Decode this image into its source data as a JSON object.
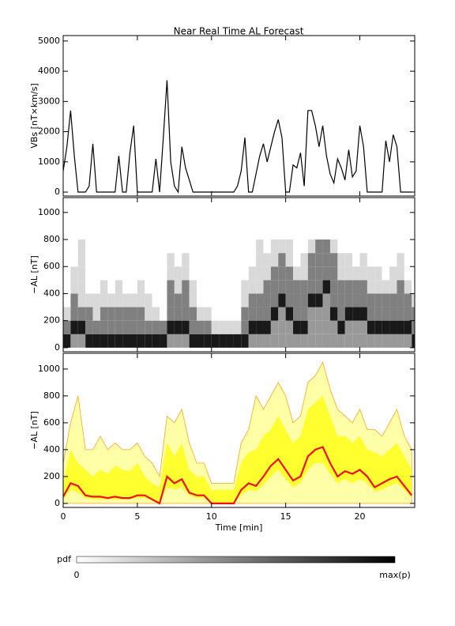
{
  "title": "Near Real Time AL Forecast",
  "colorbar": {
    "label": "pdf",
    "min_label": "0",
    "max_label": "max(p)"
  },
  "chart_data": [
    {
      "type": "line",
      "ylabel": "VBs [nT×km/s]",
      "xlim": [
        0,
        23.7
      ],
      "ylim": [
        -130,
        5180
      ],
      "yticks": [
        0,
        1000,
        2000,
        3000,
        4000,
        5000
      ],
      "series": [
        {
          "color": "#000000",
          "x": [
            0,
            0.25,
            0.5,
            0.75,
            1,
            1.25,
            1.5,
            1.75,
            2,
            2.25,
            2.5,
            2.75,
            3,
            3.25,
            3.5,
            3.75,
            4,
            4.25,
            4.5,
            4.75,
            5,
            5.25,
            5.5,
            5.75,
            6,
            6.25,
            6.5,
            6.75,
            7,
            7.25,
            7.5,
            7.75,
            8,
            8.25,
            8.5,
            8.75,
            9,
            9.25,
            9.5,
            9.75,
            10,
            10.25,
            10.5,
            10.75,
            11,
            11.25,
            11.5,
            11.75,
            12,
            12.25,
            12.5,
            12.75,
            13,
            13.25,
            13.5,
            13.75,
            14,
            14.25,
            14.5,
            14.75,
            15,
            15.25,
            15.5,
            15.75,
            16,
            16.25,
            16.5,
            16.75,
            17,
            17.25,
            17.5,
            17.75,
            18,
            18.25,
            18.5,
            18.75,
            19,
            19.25,
            19.5,
            19.75,
            20,
            20.25,
            20.5,
            20.75,
            21,
            21.25,
            21.5,
            21.75,
            22,
            22.25,
            22.5,
            22.75,
            23,
            23.25,
            23.5
          ],
          "values": [
            700,
            1500,
            2700,
            1200,
            0,
            0,
            0,
            200,
            1600,
            0,
            0,
            0,
            0,
            0,
            0,
            1200,
            0,
            0,
            1300,
            2200,
            0,
            0,
            0,
            0,
            0,
            1100,
            0,
            1800,
            3700,
            1000,
            200,
            0,
            1500,
            800,
            400,
            0,
            0,
            0,
            0,
            0,
            0,
            0,
            0,
            0,
            0,
            0,
            0,
            200,
            700,
            1800,
            0,
            0,
            600,
            1200,
            1600,
            1000,
            1500,
            2000,
            2400,
            1800,
            0,
            0,
            900,
            800,
            1300,
            200,
            2700,
            2700,
            2200,
            1500,
            2200,
            1200,
            600,
            300,
            1100,
            800,
            400,
            1400,
            500,
            700,
            2200,
            1500,
            0,
            0,
            0,
            0,
            0,
            1700,
            1000,
            1900,
            1500,
            0,
            0,
            0,
            0
          ]
        }
      ]
    },
    {
      "type": "heatmap",
      "ylabel": "−AL [nT]",
      "xlim": [
        0,
        23.7
      ],
      "ylim": [
        -30,
        1110
      ],
      "yticks": [
        0,
        200,
        400,
        600,
        800,
        1000
      ],
      "xbins": [
        0,
        0.5,
        1,
        1.5,
        2,
        2.5,
        3,
        3.5,
        4,
        4.5,
        5,
        5.5,
        6,
        6.5,
        7,
        7.5,
        8,
        8.5,
        9,
        9.5,
        10,
        10.5,
        11,
        11.5,
        12,
        12.5,
        13,
        13.5,
        14,
        14.5,
        15,
        15.5,
        16,
        16.5,
        17,
        17.5,
        18,
        18.5,
        19,
        19.5,
        20,
        20.5,
        21,
        21.5,
        22,
        22.5,
        23,
        23.5,
        24
      ],
      "ybins": [
        0,
        100,
        200,
        300,
        400,
        500,
        600,
        700,
        800
      ],
      "values": [
        [
          0.9,
          0.4,
          0.4,
          0.9,
          0.9,
          0.9,
          0.9,
          0.9,
          0.9,
          0.9,
          0.9,
          0.9,
          0.9,
          0.9,
          0.4,
          0.4,
          0.4,
          0.9,
          0.9,
          0.9,
          0.9,
          0.9,
          0.9,
          0.9,
          0.9,
          0.4,
          0.4,
          0.4,
          0.4,
          0.4,
          0.4,
          0.4,
          0.4,
          0.4,
          0.4,
          0.4,
          0.4,
          0.4,
          0.4,
          0.4,
          0.4,
          0.4,
          0.4,
          0.4,
          0.4,
          0.4,
          0.4,
          0.9
        ],
        [
          0.5,
          0.9,
          0.9,
          0.5,
          0.5,
          0.5,
          0.5,
          0.5,
          0.5,
          0.5,
          0.5,
          0.5,
          0.5,
          0.5,
          0.9,
          0.9,
          0.9,
          0.5,
          0.5,
          0.5,
          0.15,
          0.15,
          0.15,
          0.15,
          0.5,
          0.9,
          0.9,
          0.9,
          0.4,
          0.4,
          0.4,
          0.9,
          0.9,
          0.4,
          0.4,
          0.4,
          0.4,
          0.9,
          0.4,
          0.4,
          0.4,
          0.9,
          0.9,
          0.9,
          0.9,
          0.9,
          0.9,
          0.5
        ],
        [
          0.15,
          0.5,
          0.5,
          0.5,
          0.15,
          0.5,
          0.5,
          0.5,
          0.5,
          0.5,
          0.5,
          0.15,
          0.15,
          0,
          0.5,
          0.5,
          0.5,
          0.5,
          0.15,
          0.15,
          0,
          0,
          0,
          0,
          0.5,
          0.5,
          0.5,
          0.5,
          0.9,
          0.4,
          0.9,
          0.5,
          0.5,
          0.4,
          0.4,
          0.4,
          0.9,
          0.5,
          0.9,
          0.9,
          0.9,
          0.5,
          0.5,
          0.5,
          0.5,
          0.5,
          0.5,
          0.5
        ],
        [
          0,
          0.5,
          0.15,
          0.15,
          0.15,
          0.15,
          0.15,
          0.15,
          0.15,
          0.15,
          0.15,
          0.15,
          0,
          0,
          0.5,
          0.5,
          0.5,
          0.15,
          0,
          0,
          0,
          0,
          0,
          0,
          0.15,
          0.5,
          0.5,
          0.5,
          0.5,
          0.9,
          0.5,
          0.5,
          0.5,
          0.9,
          0.9,
          0.4,
          0.5,
          0.5,
          0.5,
          0.5,
          0.5,
          0.5,
          0.5,
          0.5,
          0.5,
          0.5,
          0.5,
          0.15
        ],
        [
          0,
          0.15,
          0.15,
          0,
          0,
          0.15,
          0,
          0.15,
          0,
          0,
          0.15,
          0,
          0,
          0,
          0.5,
          0.15,
          0.5,
          0.15,
          0,
          0,
          0,
          0,
          0,
          0,
          0.15,
          0.15,
          0.15,
          0.5,
          0.5,
          0.5,
          0.5,
          0.5,
          0.5,
          0.5,
          0.5,
          0.9,
          0.5,
          0.5,
          0.5,
          0.5,
          0.5,
          0.15,
          0.15,
          0.15,
          0.15,
          0.5,
          0.15,
          0
        ],
        [
          0,
          0.15,
          0.15,
          0,
          0,
          0,
          0,
          0,
          0,
          0,
          0,
          0,
          0,
          0,
          0.15,
          0.15,
          0.15,
          0,
          0,
          0,
          0,
          0,
          0,
          0,
          0,
          0.15,
          0.15,
          0.15,
          0.5,
          0.5,
          0.5,
          0.15,
          0.15,
          0.5,
          0.5,
          0.5,
          0.5,
          0.15,
          0.15,
          0.15,
          0.15,
          0.15,
          0.15,
          0,
          0.15,
          0.15,
          0,
          0
        ],
        [
          0,
          0,
          0.15,
          0,
          0,
          0,
          0,
          0,
          0,
          0,
          0,
          0,
          0,
          0,
          0.15,
          0,
          0.15,
          0,
          0,
          0,
          0,
          0,
          0,
          0,
          0,
          0,
          0.15,
          0.15,
          0.15,
          0.5,
          0.15,
          0,
          0.15,
          0.5,
          0.5,
          0.5,
          0.5,
          0.15,
          0.15,
          0,
          0.15,
          0,
          0,
          0,
          0,
          0.15,
          0,
          0
        ],
        [
          0,
          0,
          0.15,
          0,
          0,
          0,
          0,
          0,
          0,
          0,
          0,
          0,
          0,
          0,
          0,
          0,
          0,
          0,
          0,
          0,
          0,
          0,
          0,
          0,
          0,
          0,
          0.15,
          0,
          0.15,
          0.15,
          0.15,
          0,
          0,
          0.15,
          0.5,
          0.5,
          0.15,
          0,
          0,
          0,
          0,
          0,
          0,
          0,
          0,
          0,
          0,
          0
        ]
      ]
    },
    {
      "type": "forecast",
      "ylabel": "−AL [nT]",
      "xlabel": "Time [min]",
      "xlim": [
        0,
        23.7
      ],
      "ylim": [
        -30,
        1117
      ],
      "xticks": [
        0,
        5,
        10,
        15,
        20
      ],
      "yticks": [
        0,
        200,
        400,
        600,
        800,
        1000
      ],
      "x": [
        0,
        0.5,
        1,
        1.5,
        2,
        2.5,
        3,
        3.5,
        4,
        4.5,
        5,
        5.5,
        6,
        6.5,
        7,
        7.5,
        8,
        8.5,
        9,
        9.5,
        10,
        10.5,
        11,
        11.5,
        12,
        12.5,
        13,
        13.5,
        14,
        14.5,
        15,
        15.5,
        16,
        16.5,
        17,
        17.5,
        18,
        18.5,
        19,
        19.5,
        20,
        20.5,
        21,
        21.5,
        22,
        22.5,
        23,
        23.5
      ],
      "max": {
        "color": "#f5a623",
        "fill": "#ffffa8",
        "values": [
          300,
          600,
          800,
          400,
          400,
          500,
          400,
          450,
          400,
          400,
          450,
          350,
          300,
          200,
          650,
          600,
          700,
          450,
          300,
          300,
          150,
          150,
          150,
          150,
          450,
          550,
          800,
          700,
          800,
          900,
          800,
          600,
          650,
          900,
          950,
          1050,
          850,
          700,
          650,
          600,
          700,
          550,
          550,
          500,
          600,
          700,
          500,
          400
        ]
      },
      "upper": {
        "color": "#ffff30",
        "values": [
          150,
          400,
          300,
          250,
          200,
          250,
          220,
          280,
          250,
          240,
          300,
          200,
          150,
          120,
          450,
          350,
          450,
          250,
          200,
          200,
          100,
          100,
          100,
          100,
          300,
          380,
          400,
          500,
          550,
          650,
          550,
          450,
          500,
          700,
          750,
          800,
          650,
          500,
          500,
          450,
          500,
          400,
          380,
          350,
          400,
          450,
          350,
          250
        ]
      },
      "lower": {
        "values": [
          30,
          100,
          80,
          40,
          30,
          30,
          30,
          30,
          30,
          30,
          40,
          40,
          20,
          0,
          120,
          100,
          120,
          60,
          40,
          40,
          0,
          0,
          0,
          0,
          60,
          100,
          90,
          140,
          200,
          250,
          180,
          120,
          150,
          250,
          300,
          300,
          220,
          150,
          180,
          150,
          180,
          150,
          90,
          100,
          130,
          150,
          100,
          40
        ]
      },
      "median": {
        "color": "#ee1111",
        "values": [
          50,
          150,
          130,
          60,
          50,
          50,
          40,
          50,
          40,
          40,
          60,
          60,
          30,
          0,
          200,
          150,
          180,
          80,
          60,
          60,
          0,
          0,
          0,
          0,
          100,
          150,
          130,
          200,
          280,
          330,
          250,
          170,
          200,
          350,
          400,
          420,
          300,
          200,
          240,
          220,
          250,
          200,
          120,
          150,
          180,
          200,
          130,
          60
        ]
      }
    }
  ]
}
